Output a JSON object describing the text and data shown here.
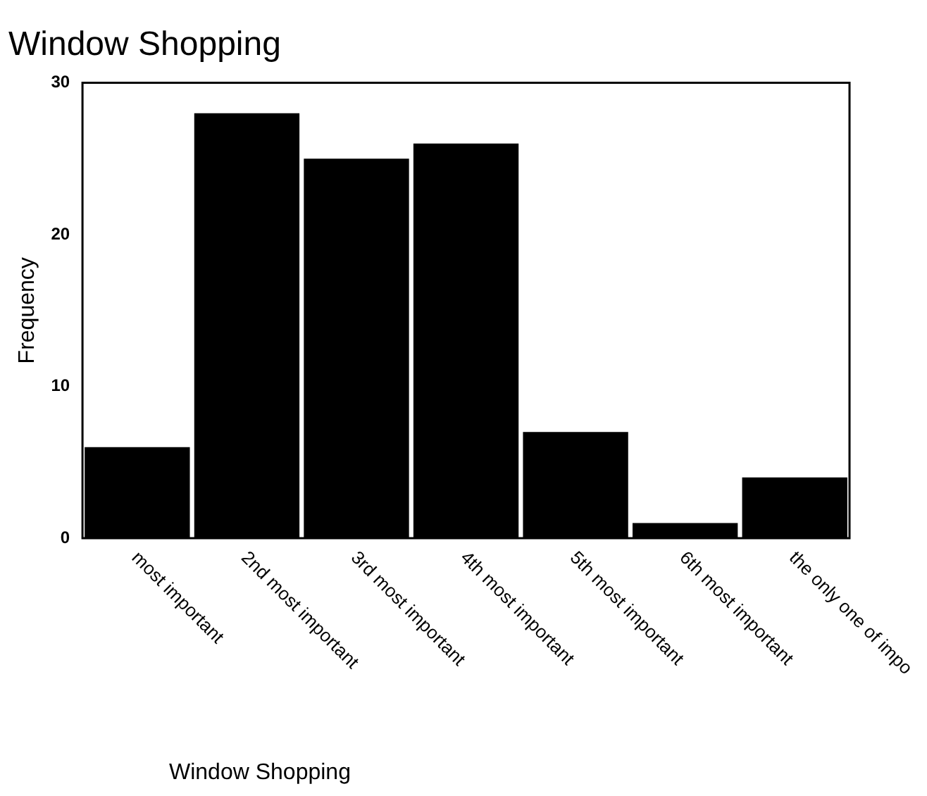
{
  "chart_data": {
    "type": "bar",
    "title": "Window Shopping",
    "xlabel": "Window Shopping",
    "ylabel": "Frequency",
    "categories": [
      "most important",
      "2nd most important",
      "3rd most important",
      "4th most important",
      "5th most important",
      "6th most important",
      "the only one of impo"
    ],
    "values": [
      6,
      28,
      25,
      26,
      7,
      1,
      4
    ],
    "color": "#000000",
    "ylim": [
      0,
      30
    ],
    "yticks": [
      0,
      10,
      20,
      30
    ],
    "grid": false,
    "legend": false
  }
}
